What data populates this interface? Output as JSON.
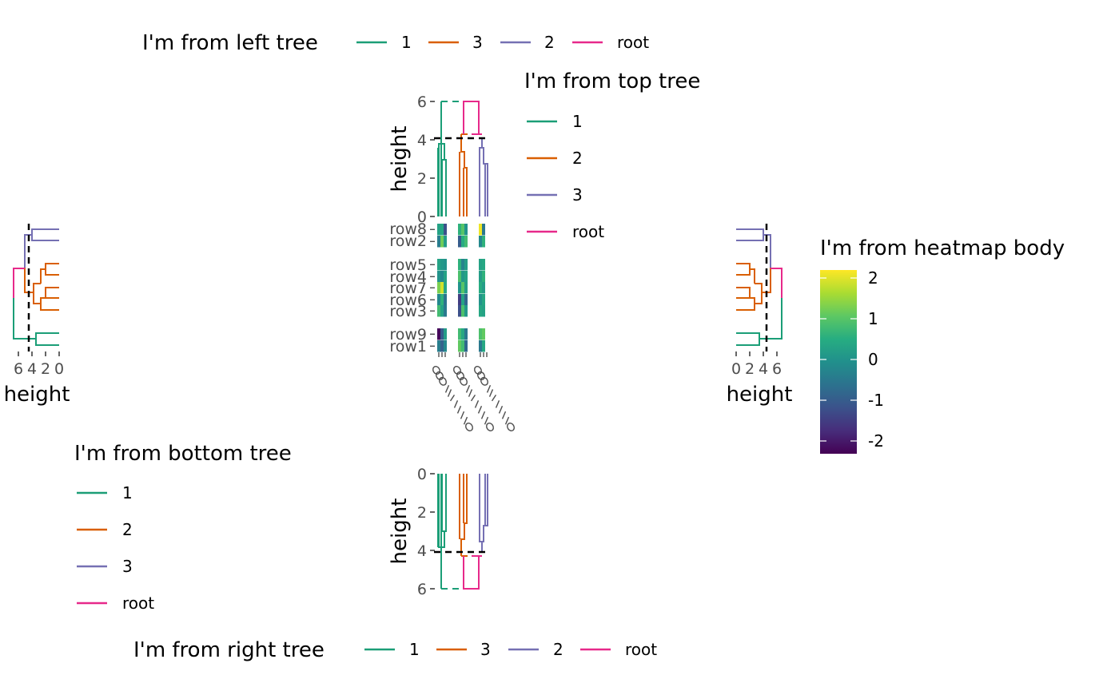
{
  "colors": {
    "1": "#1B9E77",
    "2": "#7570B3",
    "3": "#D95F02",
    "root": "#E7298A"
  },
  "legends": {
    "left": {
      "title": "I'm from left tree",
      "items": [
        "1",
        "3",
        "2",
        "root"
      ]
    },
    "top": {
      "title": "I'm from top tree",
      "items": [
        "1",
        "2",
        "3",
        "root"
      ]
    },
    "bottom": {
      "title": "I'm from bottom tree",
      "items": [
        "1",
        "2",
        "3",
        "root"
      ]
    },
    "right": {
      "title": "I'm from right tree",
      "items": [
        "1",
        "3",
        "2",
        "root"
      ]
    },
    "heatmap": {
      "title": "I'm from heatmap body",
      "ticks": [
        "2",
        "1",
        "0",
        "-1",
        "-2"
      ]
    }
  },
  "chart_data": {
    "type": "heatmap",
    "row_labels": [
      "row8",
      "row2",
      "row5",
      "row4",
      "row7",
      "row6",
      "row3",
      "row9",
      "row1"
    ],
    "row_groups": [
      "2",
      "2",
      "3",
      "3",
      "3",
      "3",
      "3",
      "1",
      "1"
    ],
    "column_group_count": 3,
    "column_labels_legible": false,
    "color_scale": {
      "palette": "viridis",
      "min": -2.3,
      "max": 2.2
    },
    "values_note_free": null,
    "values": [
      [
        0.3,
        0.4,
        -1.2,
        0.6,
        1.0,
        0.0,
        2.1,
        -0.5
      ],
      [
        -0.4,
        1.2,
        0.2,
        -1.0,
        0.5,
        0.8,
        -0.2,
        0.6
      ],
      [
        0.3,
        0.1,
        0.0,
        0.6,
        -0.3,
        0.2,
        0.3,
        0.4
      ],
      [
        0.0,
        -0.2,
        0.3,
        0.9,
        0.1,
        0.3,
        0.2,
        0.6
      ],
      [
        1.3,
        1.9,
        0.4,
        0.0,
        1.0,
        0.2,
        0.5,
        0.2
      ],
      [
        -0.2,
        0.6,
        -0.6,
        -1.5,
        0.3,
        -0.8,
        0.0,
        0.4
      ],
      [
        0.8,
        0.3,
        -0.5,
        -1.2,
        0.9,
        0.1,
        0.4,
        0.3
      ],
      [
        -2.2,
        -1.0,
        0.2,
        0.8,
        0.4,
        -0.5,
        0.9,
        1.1
      ],
      [
        -0.4,
        -0.9,
        -0.2,
        1.1,
        0.8,
        -0.8,
        -0.5,
        0.4
      ]
    ],
    "dendrograms": {
      "height_axis_title": "height",
      "top_ticks": [
        "0",
        "2",
        "4",
        "6"
      ],
      "bottom_ticks": [
        "0",
        "2",
        "4",
        "6"
      ],
      "left_ticks": [
        "6",
        "4",
        "2",
        "0"
      ],
      "right_ticks": [
        "0",
        "2",
        "4",
        "6"
      ],
      "cut_height": 4.1,
      "root_height": 6.1,
      "ylim": [
        0,
        6
      ],
      "column_groups": [
        "1",
        "2",
        "3"
      ],
      "column_group_heights": [
        3.9,
        4.3,
        4.3
      ],
      "row_tree_heights": {
        "group2": 4.2,
        "group3": 4.0,
        "group1": 1.7,
        "merge_2_3": 5.0
      }
    }
  }
}
